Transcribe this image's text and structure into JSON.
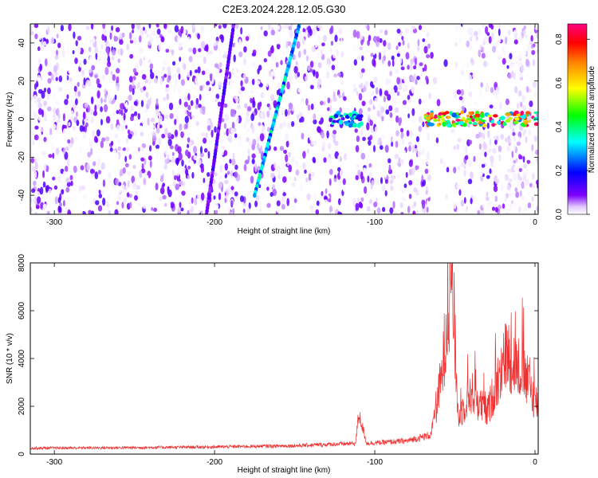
{
  "title": "C2E3.2024.228.12.05.G30",
  "chart_data": [
    {
      "type": "heatmap",
      "xlabel": "Height of straight line (km)",
      "ylabel": "Frequency (Hz)",
      "xlim": [
        -315,
        2
      ],
      "ylim": [
        -50,
        50
      ],
      "xticks": [
        -300,
        -200,
        -100,
        0
      ],
      "yticks": [
        -40,
        -20,
        0,
        20,
        40
      ],
      "colorbar": {
        "label": "Normalized spectral amplitude",
        "range": [
          0,
          0.87
        ],
        "ticks": [
          0.0,
          0.2,
          0.4,
          0.6,
          0.8
        ],
        "colormap": [
          "#ffffff",
          "#8000ff",
          "#0000ff",
          "#00ffff",
          "#00ff00",
          "#ffff00",
          "#ff0000",
          "#ff0080"
        ]
      },
      "streaks": [
        {
          "x_start": -188,
          "y_start": 50,
          "x_end": -205,
          "y_end": -50,
          "amplitude": 0.12
        },
        {
          "x_start": -147,
          "y_start": 50,
          "x_end": -175,
          "y_end": -40,
          "amplitude": 0.3
        }
      ],
      "signal_bands": [
        {
          "x_start": -128,
          "x_end": -108,
          "frequency": 0,
          "amplitude": 0.4
        },
        {
          "x_start": -68,
          "x_end": 2,
          "frequency": 0,
          "amplitude": 0.85
        }
      ],
      "blank_regions": [
        {
          "x_start": -66,
          "x_end": -52
        },
        {
          "x_start": -118,
          "x_end": -113
        }
      ]
    },
    {
      "type": "line",
      "xlabel": "Height of straight line (km)",
      "ylabel": "SNR (10 * v/v)",
      "xlim": [
        -315,
        2
      ],
      "ylim": [
        0,
        8000
      ],
      "xticks": [
        -300,
        -200,
        -100,
        0
      ],
      "yticks": [
        0,
        2000,
        4000,
        6000,
        8000
      ],
      "color": "#f03030",
      "key_points": [
        {
          "x": -315,
          "y": 250
        },
        {
          "x": -250,
          "y": 270
        },
        {
          "x": -200,
          "y": 300
        },
        {
          "x": -150,
          "y": 350
        },
        {
          "x": -112,
          "y": 450
        },
        {
          "x": -110,
          "y": 1700
        },
        {
          "x": -105,
          "y": 450
        },
        {
          "x": -80,
          "y": 550
        },
        {
          "x": -65,
          "y": 800
        },
        {
          "x": -58,
          "y": 3300
        },
        {
          "x": -52,
          "y": 8000
        },
        {
          "x": -48,
          "y": 1500
        },
        {
          "x": -40,
          "y": 2600
        },
        {
          "x": -30,
          "y": 1700
        },
        {
          "x": -18,
          "y": 4200
        },
        {
          "x": -8,
          "y": 3500
        },
        {
          "x": 2,
          "y": 2000
        }
      ]
    }
  ]
}
